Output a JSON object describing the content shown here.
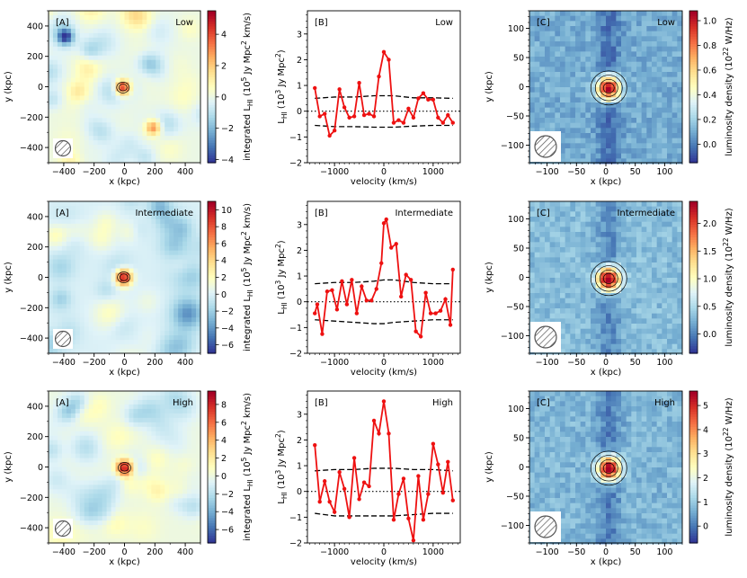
{
  "figure": {
    "row_labels": [
      "Low",
      "Intermediate",
      "High"
    ]
  },
  "chart_data": [
    {
      "type": "heatmap",
      "panel": "A",
      "rows": [
        {
          "label": "Low",
          "colorbar_ticks": [
            -4,
            -2,
            0,
            2,
            4
          ],
          "vmin": -4.2,
          "vmax": 5.5,
          "sources": [
            {
              "x": -10,
              "y": -5,
              "amp": 5.0,
              "sigma": 35
            },
            {
              "x": 190,
              "y": -270,
              "amp": 3.2,
              "sigma": 35
            },
            {
              "x": -390,
              "y": 330,
              "amp": -3.8,
              "sigma": 35
            }
          ],
          "noise_amp": 1.2
        },
        {
          "label": "Intermediate",
          "colorbar_ticks": [
            -6,
            -4,
            -2,
            0,
            2,
            4,
            6,
            8,
            10
          ],
          "vmin": -7.0,
          "vmax": 11.0,
          "sources": [
            {
              "x": -5,
              "y": 0,
              "amp": 10.5,
              "sigma": 38
            }
          ],
          "noise_amp": 2.2
        },
        {
          "label": "High",
          "colorbar_ticks": [
            -6,
            -4,
            -2,
            0,
            2,
            4,
            6,
            8
          ],
          "vmin": -7.5,
          "vmax": 9.5,
          "sources": [
            {
              "x": 0,
              "y": -5,
              "amp": 9.0,
              "sigma": 38
            }
          ],
          "noise_amp": 2.0
        }
      ],
      "tag": "[A]",
      "xlabel": "x (kpc)",
      "ylabel": "y (kpc)",
      "x_range": [
        -500,
        500
      ],
      "y_range": [
        -500,
        500
      ],
      "x_ticks": [
        -400,
        -200,
        0,
        200,
        400
      ],
      "y_ticks": [
        -400,
        -200,
        0,
        200,
        400
      ],
      "colorbar_label_pre": "integrated L",
      "colorbar_label_sub": "HI",
      "colorbar_label_post": " (10",
      "colorbar_label_sup": "5",
      "colorbar_label_post2": " Jy Mpc",
      "colorbar_label_sup2": "2",
      "colorbar_label_post3": " km/s)"
    },
    {
      "type": "line",
      "panel": "B",
      "tag": "[B]",
      "xlabel": "velocity (km/s)",
      "ylabel_pre": "L",
      "ylabel_sub": "HI",
      "ylabel_post": "  (10",
      "ylabel_sup": "3",
      "ylabel_post2": " Jy Mpc",
      "ylabel_sup2": "2",
      "ylabel_post3": ")",
      "x_range": [
        -1550,
        1550
      ],
      "y_range": [
        -2,
        3.9
      ],
      "x_ticks": [
        -1000,
        0,
        1000
      ],
      "y_ticks": [
        -2,
        -1,
        0,
        1,
        2,
        3
      ],
      "rows": [
        {
          "label": "Low",
          "x": [
            -1400,
            -1300,
            -1200,
            -1100,
            -1000,
            -900,
            -800,
            -700,
            -600,
            -500,
            -400,
            -300,
            -200,
            -100,
            0,
            100,
            200,
            300,
            400,
            500,
            600,
            700,
            800,
            900,
            1000,
            1100,
            1200,
            1300,
            1400
          ],
          "y": [
            0.9,
            -0.2,
            -0.1,
            -0.95,
            -0.75,
            0.85,
            0.15,
            -0.25,
            -0.2,
            1.1,
            -0.15,
            -0.1,
            -0.2,
            1.35,
            2.3,
            2.0,
            -0.45,
            -0.35,
            -0.45,
            0.1,
            -0.25,
            0.5,
            0.7,
            0.45,
            0.45,
            -0.25,
            -0.45,
            -0.15,
            -0.45
          ],
          "upper_x": [
            -1400,
            -1000,
            -600,
            -200,
            200,
            600,
            1000,
            1400
          ],
          "upper_y": [
            0.5,
            0.55,
            0.55,
            0.6,
            0.6,
            0.52,
            0.52,
            0.5
          ],
          "lower_x": [
            -1400,
            -1000,
            -600,
            -200,
            200,
            600,
            1000,
            1400
          ],
          "lower_y": [
            -0.55,
            -0.6,
            -0.6,
            -0.62,
            -0.62,
            -0.58,
            -0.55,
            -0.55
          ]
        },
        {
          "label": "Intermediate",
          "x": [
            -1400,
            -1350,
            -1250,
            -1150,
            -1050,
            -950,
            -850,
            -750,
            -650,
            -550,
            -450,
            -350,
            -250,
            -150,
            -50,
            0,
            50,
            150,
            250,
            350,
            450,
            550,
            650,
            750,
            850,
            950,
            1050,
            1150,
            1250,
            1350,
            1400
          ],
          "y": [
            -0.45,
            -0.1,
            -1.25,
            0.4,
            0.45,
            -0.3,
            0.8,
            -0.1,
            0.85,
            -0.45,
            0.6,
            0.05,
            0.05,
            0.5,
            1.5,
            3.05,
            3.2,
            2.1,
            2.25,
            0.2,
            1.05,
            0.85,
            -1.15,
            -1.35,
            0.35,
            -0.45,
            -0.45,
            -0.35,
            0.1,
            -0.9,
            1.25
          ],
          "upper_x": [
            -1400,
            -1000,
            -600,
            -200,
            0,
            200,
            600,
            1000,
            1400
          ],
          "upper_y": [
            0.7,
            0.75,
            0.75,
            0.8,
            0.85,
            0.85,
            0.75,
            0.7,
            0.7
          ],
          "lower_x": [
            -1400,
            -1000,
            -600,
            -200,
            0,
            200,
            600,
            1000,
            1400
          ],
          "lower_y": [
            -0.7,
            -0.75,
            -0.8,
            -0.85,
            -0.85,
            -0.8,
            -0.75,
            -0.7,
            -0.7
          ]
        },
        {
          "label": "High",
          "x": [
            -1400,
            -1300,
            -1200,
            -1100,
            -1000,
            -900,
            -800,
            -700,
            -600,
            -500,
            -400,
            -300,
            -200,
            -100,
            0,
            100,
            200,
            300,
            400,
            500,
            600,
            700,
            800,
            900,
            1000,
            1100,
            1200,
            1300,
            1400
          ],
          "y": [
            1.8,
            -0.4,
            0.4,
            -0.4,
            -0.8,
            0.75,
            0.1,
            -1.0,
            1.3,
            -0.3,
            0.35,
            0.2,
            2.75,
            2.25,
            3.5,
            2.25,
            -1.1,
            -0.1,
            0.5,
            -1.05,
            -1.9,
            0.6,
            -1.1,
            -0.1,
            1.85,
            1.05,
            -0.05,
            1.15,
            -0.35
          ],
          "upper_x": [
            -1400,
            -1000,
            -600,
            -200,
            200,
            600,
            1000,
            1400
          ],
          "upper_y": [
            0.8,
            0.85,
            0.85,
            0.9,
            0.9,
            0.85,
            0.85,
            0.8
          ],
          "lower_x": [
            -1400,
            -1000,
            -600,
            -200,
            200,
            600,
            1000,
            1400
          ],
          "lower_y": [
            -0.85,
            -0.95,
            -0.95,
            -0.95,
            -0.95,
            -0.9,
            -0.85,
            -0.85
          ]
        }
      ]
    },
    {
      "type": "heatmap",
      "panel": "C",
      "tag": "[C]",
      "xlabel": "x (kpc)",
      "ylabel": "y (kpc)",
      "x_range": [
        -130,
        130
      ],
      "y_range": [
        -130,
        130
      ],
      "x_ticks": [
        -100,
        -50,
        0,
        50,
        100
      ],
      "y_ticks": [
        -100,
        -50,
        0,
        50,
        100
      ],
      "colorbar_label_pre": "luminosity density (10",
      "colorbar_label_sup": "22",
      "colorbar_label_post": " W/Hz)",
      "rows": [
        {
          "label": "Low",
          "colorbar_ticks": [
            0.0,
            0.2,
            0.4,
            0.6,
            0.8,
            1.0
          ],
          "vmin": -0.15,
          "vmax": 1.08,
          "peak": 1.05,
          "bg": 0.1
        },
        {
          "label": "Intermediate",
          "colorbar_ticks": [
            0.0,
            0.5,
            1.0,
            1.5,
            2.0
          ],
          "vmin": -0.35,
          "vmax": 2.4,
          "peak": 2.3,
          "bg": 0.3
        },
        {
          "label": "High",
          "colorbar_ticks": [
            0,
            1,
            2,
            3,
            4,
            5
          ],
          "vmin": -0.7,
          "vmax": 5.6,
          "peak": 5.3,
          "bg": 0.7
        }
      ]
    }
  ]
}
